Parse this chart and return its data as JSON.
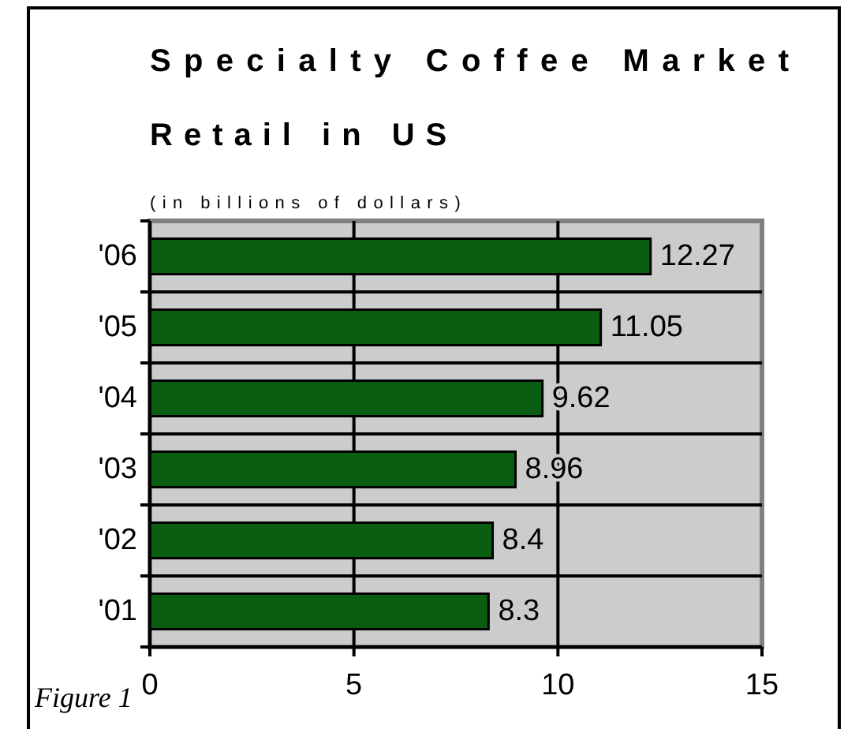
{
  "chart_data": {
    "type": "bar",
    "orientation": "horizontal",
    "title": "Specialty Coffee Market Retail in US",
    "subtitle": "(in billions of dollars)",
    "categories": [
      "'06",
      "'05",
      "'04",
      "'03",
      "'02",
      "'01"
    ],
    "values": [
      12.27,
      11.05,
      9.62,
      8.96,
      8.4,
      8.3
    ],
    "color": "#0a5e12",
    "xlim": [
      0,
      15
    ],
    "xticks": [
      0,
      5,
      10,
      15
    ],
    "grid": true,
    "data_labels": true,
    "annotations": [
      "Figure 1"
    ]
  }
}
